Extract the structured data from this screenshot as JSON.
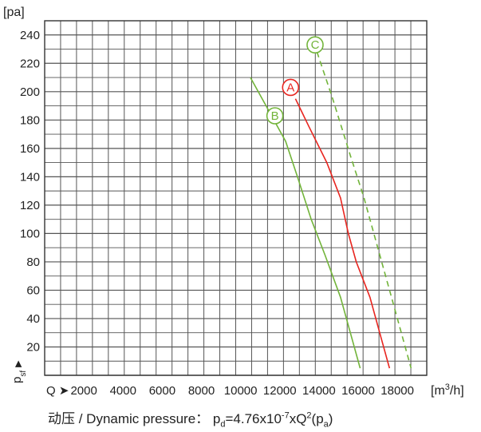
{
  "chart_data": {
    "type": "line",
    "ylabel_unit": "[pa]",
    "xlabel_unit_base": "[m",
    "xlabel_unit_sup": "3",
    "xlabel_unit_tail": "/h]",
    "y_axis_symbol": "p",
    "y_axis_symbol_sub": "sf",
    "y_axis_arrow": "▶",
    "x_axis_symbol": "Q",
    "x_axis_arrow": "➤",
    "xlim": [
      0,
      19500
    ],
    "ylim": [
      0,
      250
    ],
    "x_ticks": [
      2000,
      4000,
      6000,
      8000,
      10000,
      12000,
      14000,
      16000,
      18000
    ],
    "y_ticks": [
      20,
      40,
      60,
      80,
      100,
      120,
      140,
      160,
      180,
      200,
      220,
      240
    ],
    "grid": true,
    "series": [
      {
        "name": "A",
        "color": "#e8251f",
        "style": "solid",
        "points": [
          [
            12800,
            195
          ],
          [
            13500,
            175
          ],
          [
            14400,
            150
          ],
          [
            15100,
            125
          ],
          [
            15500,
            100
          ],
          [
            15900,
            80
          ],
          [
            16600,
            55
          ],
          [
            17100,
            30
          ],
          [
            17600,
            5
          ]
        ]
      },
      {
        "name": "B",
        "color": "#72b43a",
        "style": "solid",
        "points": [
          [
            10500,
            210
          ],
          [
            11300,
            190
          ],
          [
            12300,
            165
          ],
          [
            12900,
            140
          ],
          [
            13600,
            110
          ],
          [
            14300,
            85
          ],
          [
            15100,
            55
          ],
          [
            15600,
            30
          ],
          [
            16100,
            5
          ]
        ]
      },
      {
        "name": "C",
        "color": "#72b43a",
        "style": "dashed",
        "points": [
          [
            13900,
            228
          ],
          [
            14700,
            195
          ],
          [
            15600,
            155
          ],
          [
            16300,
            125
          ],
          [
            16900,
            95
          ],
          [
            17500,
            65
          ],
          [
            18000,
            40
          ],
          [
            18400,
            20
          ],
          [
            18700,
            5
          ]
        ]
      }
    ],
    "labels": [
      {
        "text": "A",
        "color": "#e8251f",
        "x": 12550,
        "y": 203
      },
      {
        "text": "B",
        "color": "#72b43a",
        "x": 11750,
        "y": 183
      },
      {
        "text": "C",
        "color": "#72b43a",
        "x": 13800,
        "y": 233
      }
    ]
  },
  "footer": {
    "prefix": "动压 / Dynamic pressure：  p",
    "sub_d": "d",
    "mid": "=4.76x10",
    "sup_exp": "-7",
    "xq": "xQ",
    "sup_2": "2",
    "paren_open": "(p",
    "sub_a": "a",
    "paren_close": ")"
  }
}
